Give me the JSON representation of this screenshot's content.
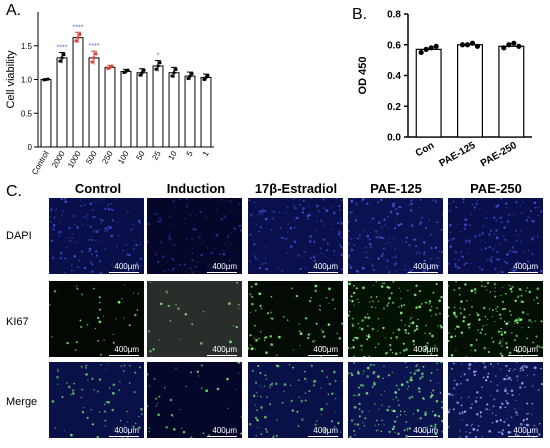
{
  "panels": {
    "a": "A.",
    "b": "B.",
    "c": "C."
  },
  "chart_data": [
    {
      "type": "bar",
      "ylabel": "Cell viability",
      "ylim": [
        0,
        2.0
      ],
      "yticks": [
        0,
        0.5,
        1.0,
        1.5
      ],
      "ytick_labels": [
        "0",
        "0.5",
        "1.0",
        "1.5"
      ],
      "categories": [
        "Control",
        "2000",
        "1000",
        "500",
        "250",
        "100",
        "50",
        "25",
        "10",
        "5",
        "1"
      ],
      "values": [
        1.0,
        1.32,
        1.62,
        1.32,
        1.18,
        1.12,
        1.1,
        1.2,
        1.1,
        1.05,
        1.03
      ],
      "errors": [
        0.01,
        0.08,
        0.08,
        0.1,
        0.03,
        0.03,
        0.06,
        0.08,
        0.08,
        0.06,
        0.05
      ],
      "highlighted": [
        "1000",
        "500",
        "250"
      ],
      "significance": [
        "",
        "****",
        "****",
        "****",
        "",
        "",
        "",
        "*",
        "",
        "",
        ""
      ],
      "highlight_color": "#d9453b"
    },
    {
      "type": "bar",
      "ylabel": "OD 450",
      "ylim": [
        0.0,
        0.8
      ],
      "yticks": [
        0.0,
        0.2,
        0.4,
        0.6,
        0.8
      ],
      "ytick_labels": [
        "0.0",
        "0.2",
        "0.4",
        "0.6",
        "0.8"
      ],
      "categories": [
        "Con",
        "PAE-125",
        "PAE-250"
      ],
      "values": [
        0.57,
        0.6,
        0.59
      ],
      "points": [
        [
          0.55,
          0.57,
          0.58,
          0.59
        ],
        [
          0.6,
          0.6,
          0.61,
          0.59
        ],
        [
          0.58,
          0.6,
          0.61,
          0.59
        ]
      ]
    }
  ],
  "micrographs": {
    "columns": [
      "Control",
      "Induction",
      "17β-Estradiol",
      "PAE-125",
      "PAE-250"
    ],
    "rows": [
      "DAPI",
      "KI67",
      "Merge"
    ],
    "scale_bar": "400μm"
  }
}
